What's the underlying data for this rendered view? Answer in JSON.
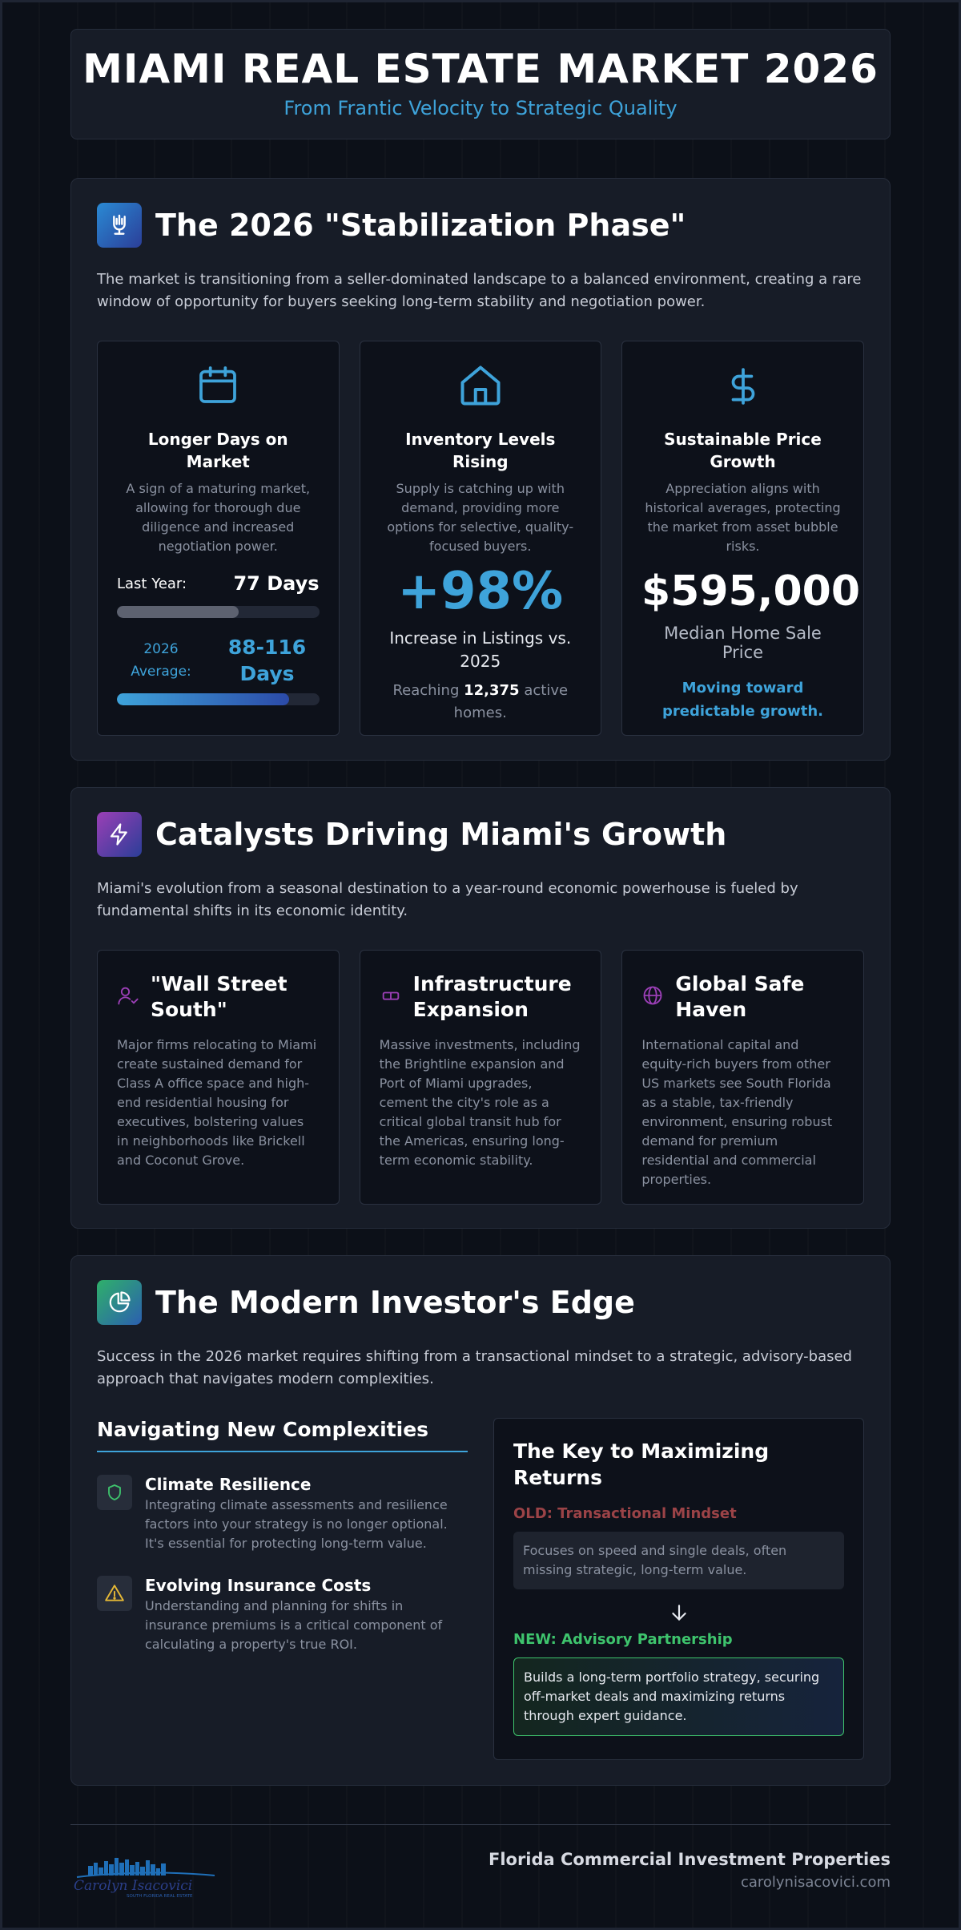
{
  "header": {
    "title": "MIAMI REAL ESTATE MARKET 2026",
    "subtitle": "From Frantic Velocity to Strategic Quality"
  },
  "section1": {
    "title": "The 2026 \"Stabilization Phase\"",
    "icon": "hand-icon",
    "description": "The market is transitioning from a seller-dominated landscape to a balanced environment, creating a rare window of opportunity for buyers seeking long-term stability and negotiation power.",
    "cards": [
      {
        "icon": "calendar-icon",
        "title": "Longer Days on Market",
        "description": "A sign of a maturing market, allowing for thorough due diligence and increased negotiation power.",
        "last_year_label": "Last Year:",
        "last_year_value": "77 Days",
        "last_year_fill": 0.6,
        "avg_label": "2026 Average:",
        "avg_value": "88-116 Days",
        "avg_fill": 0.85
      },
      {
        "icon": "home-icon",
        "title": "Inventory Levels Rising",
        "description": "Supply is catching up with demand, providing more options for selective, quality-focused buyers.",
        "big_number": "+98%",
        "big_caption": "Increase in Listings vs. 2025",
        "reach_prefix": "Reaching",
        "reach_value": "12,375",
        "reach_suffix": "active homes."
      },
      {
        "icon": "dollar-icon",
        "title": "Sustainable Price Growth",
        "description": "Appreciation aligns with historical averages, protecting the market from asset bubble risks.",
        "big_number": "$595,000",
        "big_caption": "Median Home Sale Price",
        "note": "Moving toward predictable growth."
      }
    ]
  },
  "section2": {
    "title": "Catalysts Driving Miami's Growth",
    "icon": "lightning-icon",
    "description": "Miami's evolution from a seasonal destination to a year-round economic powerhouse is fueled by fundamental shifts in its economic identity.",
    "cards": [
      {
        "icon": "user-check-icon",
        "title": "\"Wall Street South\"",
        "text": "Major firms relocating to Miami create sustained demand for Class A office space and high-end residential housing for executives, bolstering values in neighborhoods like Brickell and Coconut Grove."
      },
      {
        "icon": "train-icon",
        "title": "Infrastructure Expansion",
        "text": "Massive investments, including the Brightline expansion and Port of Miami upgrades, cement the city's role as a critical global transit hub for the Americas, ensuring long-term economic stability."
      },
      {
        "icon": "globe-icon",
        "title": "Global Safe Haven",
        "text": "International capital and equity-rich buyers from other US markets see South Florida as a stable, tax-friendly environment, ensuring robust demand for premium residential and commercial properties."
      }
    ]
  },
  "section3": {
    "title": "The Modern Investor's Edge",
    "icon": "pie-chart-icon",
    "description": "Success in the 2026 market requires shifting from a transactional mindset to a strategic, advisory-based approach that navigates modern complexities.",
    "left_title": "Navigating New Complexities",
    "items": [
      {
        "icon": "shield-icon",
        "title": "Climate Resilience",
        "text": "Integrating climate assessments and resilience factors into your strategy is no longer optional. It's essential for protecting long-term value."
      },
      {
        "icon": "warning-icon",
        "title": "Evolving Insurance Costs",
        "text": "Understanding and planning for shifts in insurance premiums is a critical component of calculating a property's true ROI."
      }
    ],
    "right_title": "The Key to Maximizing Returns",
    "old_label": "OLD: Transactional Mindset",
    "old_text": "Focuses on speed and single deals, often missing strategic, long-term value.",
    "new_label": "NEW: Advisory Partnership",
    "new_text": "Builds a long-term portfolio strategy, securing off-market deals and maximizing returns through expert guidance."
  },
  "footer": {
    "company": "Florida Commercial Investment Properties",
    "website": "carolynisacovici.com",
    "logo_script": "Carolyn Isacovici",
    "logo_tagline": "SOUTH FLORIDA REAL ESTATE"
  },
  "colors": {
    "accent_blue": "#3ea3da",
    "accent_purple": "#9b3fb6",
    "accent_green": "#3ec46d",
    "old_red": "#9b4347",
    "background": "#0c1018"
  }
}
